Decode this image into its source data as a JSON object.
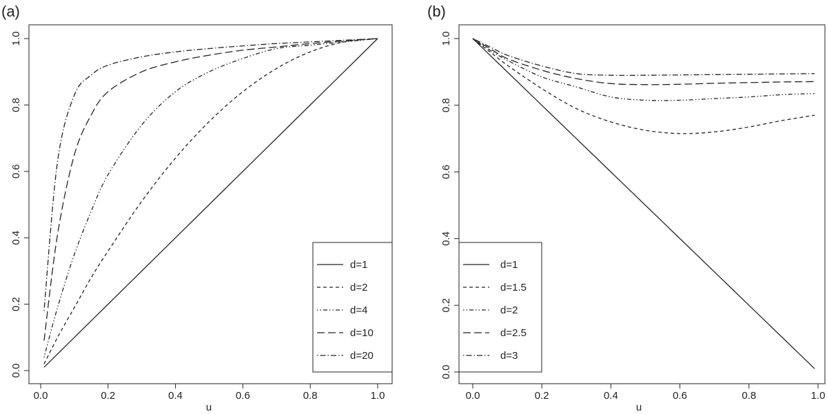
{
  "chart_data": [
    {
      "panel_label": "(a)",
      "type": "line",
      "xlabel": "u",
      "ylabel": "",
      "xlim": [
        0,
        1
      ],
      "ylim": [
        0,
        1
      ],
      "xticks": [
        0.0,
        0.2,
        0.4,
        0.6,
        0.8,
        1.0
      ],
      "yticks": [
        0.0,
        0.2,
        0.4,
        0.6,
        0.8,
        1.0
      ],
      "xtick_labels": [
        "0.0",
        "0.2",
        "0.4",
        "0.6",
        "0.8",
        "1.0"
      ],
      "ytick_labels": [
        "0.0",
        "0.2",
        "0.4",
        "0.6",
        "0.8",
        "1.0"
      ],
      "grid": false,
      "legend_position": "bottom-right",
      "x": [
        0.01,
        0.05,
        0.1,
        0.15,
        0.2,
        0.3,
        0.4,
        0.5,
        0.6,
        0.7,
        0.8,
        0.9,
        1.0
      ],
      "series": [
        {
          "name": "d=1",
          "dash": "solid",
          "values": [
            0.01,
            0.05,
            0.1,
            0.15,
            0.2,
            0.3,
            0.4,
            0.5,
            0.6,
            0.7,
            0.8,
            0.9,
            1.0
          ]
        },
        {
          "name": "d=2",
          "dash": "dashed",
          "values": [
            0.02,
            0.1,
            0.19,
            0.28,
            0.36,
            0.51,
            0.64,
            0.75,
            0.84,
            0.91,
            0.96,
            0.99,
            1.0
          ]
        },
        {
          "name": "d=4",
          "dash": "dotdotdash",
          "values": [
            0.04,
            0.19,
            0.35,
            0.48,
            0.59,
            0.74,
            0.84,
            0.9,
            0.94,
            0.97,
            0.98,
            0.99,
            1.0
          ]
        },
        {
          "name": "d=10",
          "dash": "longdash",
          "values": [
            0.09,
            0.41,
            0.65,
            0.77,
            0.84,
            0.9,
            0.93,
            0.95,
            0.965,
            0.975,
            0.985,
            0.993,
            1.0
          ]
        },
        {
          "name": "d=20",
          "dash": "dotdash",
          "values": [
            0.18,
            0.63,
            0.83,
            0.89,
            0.92,
            0.945,
            0.96,
            0.97,
            0.978,
            0.985,
            0.99,
            0.995,
            1.0
          ]
        }
      ]
    },
    {
      "panel_label": "(b)",
      "type": "line",
      "xlabel": "u",
      "ylabel": "",
      "xlim": [
        0,
        1
      ],
      "ylim": [
        0,
        1
      ],
      "xticks": [
        0.0,
        0.2,
        0.4,
        0.6,
        0.8,
        1.0
      ],
      "yticks": [
        0.0,
        0.2,
        0.4,
        0.6,
        0.8,
        1.0
      ],
      "xtick_labels": [
        "0.0",
        "0.2",
        "0.4",
        "0.6",
        "0.8",
        "1.0"
      ],
      "ytick_labels": [
        "0.0",
        "0.2",
        "0.4",
        "0.6",
        "0.8",
        "1.0"
      ],
      "grid": false,
      "legend_position": "bottom-left",
      "x": [
        0.0,
        0.05,
        0.1,
        0.2,
        0.3,
        0.4,
        0.5,
        0.6,
        0.7,
        0.8,
        0.9,
        0.99
      ],
      "series": [
        {
          "name": "d=1",
          "dash": "solid",
          "values": [
            1.0,
            0.95,
            0.9,
            0.8,
            0.7,
            0.6,
            0.5,
            0.4,
            0.3,
            0.2,
            0.1,
            0.01
          ]
        },
        {
          "name": "d=1.5",
          "dash": "dashed",
          "values": [
            1.0,
            0.96,
            0.92,
            0.85,
            0.79,
            0.75,
            0.725,
            0.715,
            0.72,
            0.735,
            0.755,
            0.77
          ]
        },
        {
          "name": "d=2",
          "dash": "dotdotdash",
          "values": [
            1.0,
            0.965,
            0.935,
            0.885,
            0.855,
            0.825,
            0.815,
            0.815,
            0.82,
            0.825,
            0.832,
            0.835
          ]
        },
        {
          "name": "d=2.5",
          "dash": "longdash",
          "values": [
            1.0,
            0.97,
            0.94,
            0.905,
            0.88,
            0.865,
            0.862,
            0.863,
            0.866,
            0.868,
            0.87,
            0.871
          ]
        },
        {
          "name": "d=3",
          "dash": "dotdash",
          "values": [
            1.0,
            0.975,
            0.95,
            0.918,
            0.895,
            0.89,
            0.89,
            0.891,
            0.892,
            0.893,
            0.894,
            0.895
          ]
        }
      ]
    }
  ]
}
